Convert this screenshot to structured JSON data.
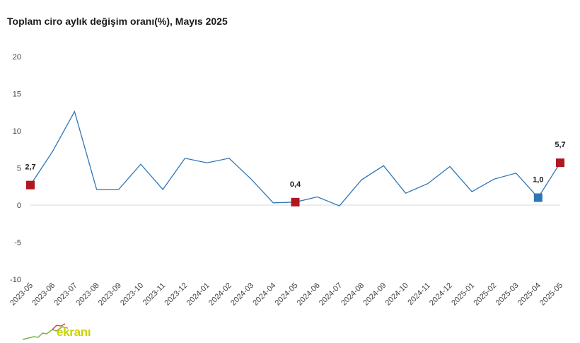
{
  "chart_data": {
    "type": "line",
    "title": "Toplam ciro aylık değişim oranı(%), Mayıs 2025",
    "xlabel": "",
    "ylabel": "",
    "ylim": [
      -10,
      20
    ],
    "yticks": [
      -10,
      -5,
      0,
      5,
      10,
      15,
      20
    ],
    "grid": false,
    "categories": [
      "2023-05",
      "2023-06",
      "2023-07",
      "2023-08",
      "2023-09",
      "2023-10",
      "2023-11",
      "2023-12",
      "2024-01",
      "2024-02",
      "2024-03",
      "2024-04",
      "2024-05",
      "2024-06",
      "2024-07",
      "2024-08",
      "2024-09",
      "2024-10",
      "2024-11",
      "2024-12",
      "2025-01",
      "2025-02",
      "2025-03",
      "2025-04",
      "2025-05"
    ],
    "series": [
      {
        "values": [
          2.7,
          7.2,
          12.6,
          2.1,
          2.1,
          5.5,
          2.1,
          6.3,
          5.7,
          6.3,
          3.5,
          0.3,
          0.4,
          1.1,
          -0.1,
          3.4,
          5.3,
          1.6,
          2.9,
          5.2,
          1.8,
          3.5,
          4.3,
          1.0,
          5.7
        ]
      }
    ],
    "highlighted_points": [
      {
        "category": "2023-05",
        "label": "2,7",
        "color": "#b0171f"
      },
      {
        "category": "2024-05",
        "label": "0,4",
        "color": "#b0171f"
      },
      {
        "category": "2025-04",
        "label": "1,0",
        "color": "#2e75b6"
      },
      {
        "category": "2025-05",
        "label": "5,7",
        "color": "#b0171f"
      }
    ],
    "line_color": "#2e75b6"
  },
  "watermark": {
    "text": "ekranı"
  }
}
